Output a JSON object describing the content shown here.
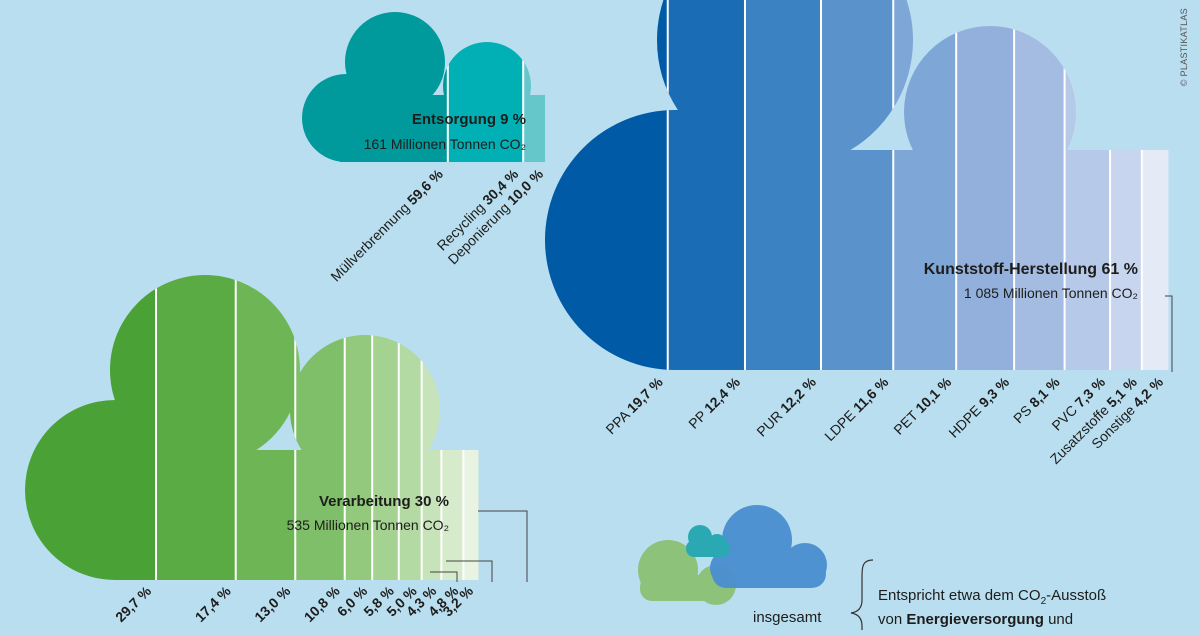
{
  "credit": "© PLASTIKATLAS",
  "chart_data": [
    {
      "type": "bar",
      "title": "Entsorgung 9 %",
      "subtitle": "161 Millionen Tonnen CO₂",
      "categories": [
        "Müllverbrennung",
        "Recycling",
        "Deponierung"
      ],
      "values": [
        59.6,
        30.4,
        10.0
      ],
      "value_labels": [
        "59,6 %",
        "30,4 %",
        "10,0 %"
      ],
      "colors": [
        "#009a9c",
        "#00b0b4",
        "#66c7cb"
      ]
    },
    {
      "type": "bar",
      "title": "Kunststoff-Herstellung 61 %",
      "subtitle": "1 085 Millionen Tonnen CO₂",
      "categories": [
        "PPA",
        "PP",
        "PUR",
        "LDPE",
        "PET",
        "HDPE",
        "PS",
        "PVC",
        "Zusatzstoffe",
        "Sonstige"
      ],
      "values": [
        19.7,
        12.4,
        12.2,
        11.6,
        10.1,
        9.3,
        8.1,
        7.3,
        5.1,
        4.2
      ],
      "value_labels": [
        "19,7 %",
        "12,4 %",
        "12,2 %",
        "11,6 %",
        "10,1 %",
        "9,3 %",
        "8,1 %",
        "7,3 %",
        "5,1 %",
        "4,2 %"
      ],
      "colors": [
        "#005aa6",
        "#1a6db4",
        "#3a82c2",
        "#5a93cb",
        "#7ea6d6",
        "#93b0dc",
        "#a4bce2",
        "#b6c9e8",
        "#c8d5ee",
        "#e4ebf7"
      ]
    },
    {
      "type": "bar",
      "title": "Verarbeitung 30 %",
      "subtitle": "535 Millionen Tonnen CO₂",
      "categories": [
        "",
        "",
        "",
        "",
        "",
        "",
        "",
        "",
        "",
        ""
      ],
      "values": [
        29.7,
        17.4,
        13.0,
        10.8,
        6.0,
        5.8,
        5.0,
        4.3,
        4.8,
        3.2
      ],
      "value_labels": [
        "29,7 %",
        "17,4 %",
        "13,0 %",
        "10,8 %",
        "6,0 %",
        "5,8 %",
        "5,0 %",
        "4,3 %",
        "4,8 %",
        "3,2 %"
      ],
      "colors": [
        "#4aa135",
        "#5aab43",
        "#6db555",
        "#80bf69",
        "#92c97c",
        "#a4d291",
        "#b4daa4",
        "#c6e3b9",
        "#d6ebcc",
        "#e8f3e1"
      ]
    }
  ],
  "legend": {
    "caption": "insgesamt",
    "line1_a": "Entspricht etwa dem CO",
    "line1_b": "-Ausstoß",
    "line2_a": "von ",
    "line2_b": "Energieversorgung",
    "line2_c": " und"
  }
}
